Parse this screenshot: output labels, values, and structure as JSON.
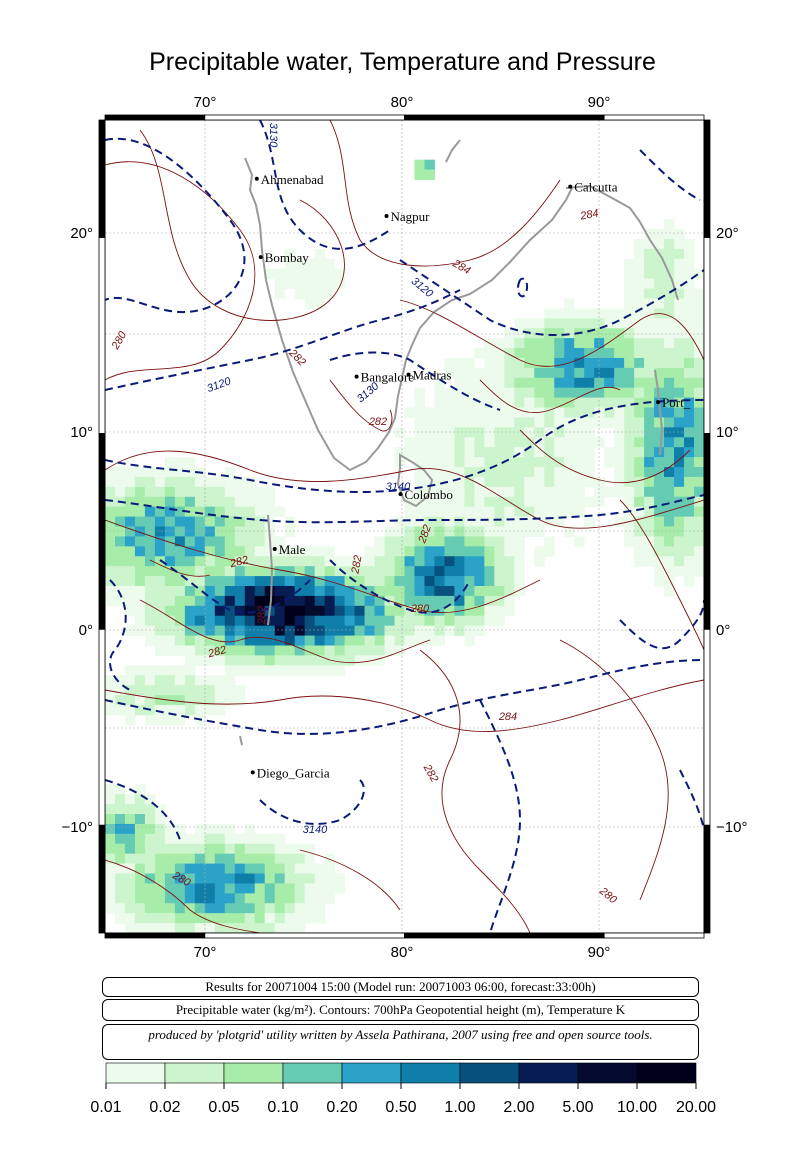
{
  "title": "Precipitable water, Temperature and Pressure",
  "axes": {
    "lon_ticks": [
      "70°",
      "80°",
      "90°"
    ],
    "lat_ticks": [
      "20°",
      "10°",
      "0°",
      "−10°"
    ]
  },
  "cities": [
    {
      "name": "Ahmenabad",
      "lon": 72.6,
      "lat": 23.0
    },
    {
      "name": "Nagpur",
      "lon": 79.1,
      "lat": 21.1
    },
    {
      "name": "Calcutta",
      "lon": 88.3,
      "lat": 22.6
    },
    {
      "name": "Bombay",
      "lon": 72.8,
      "lat": 19.0
    },
    {
      "name": "Bangalore",
      "lon": 77.6,
      "lat": 12.9
    },
    {
      "name": "Madras",
      "lon": 80.2,
      "lat": 13.0
    },
    {
      "name": "Port_",
      "lon": 92.7,
      "lat": 11.6
    },
    {
      "name": "Colombo",
      "lon": 79.8,
      "lat": 6.9
    },
    {
      "name": "Male",
      "lon": 73.5,
      "lat": 4.1
    },
    {
      "name": "Diego_Garcia",
      "lon": 72.4,
      "lat": -7.3
    }
  ],
  "contour_labels": {
    "geopotential": [
      "3130",
      "3120",
      "3120",
      "3130",
      "3140",
      "3140"
    ],
    "temperature": [
      "284",
      "284",
      "280",
      "282",
      "282",
      "282",
      "282",
      "282",
      "282",
      "280",
      "282",
      "284",
      "282",
      "280",
      "280"
    ]
  },
  "info": {
    "results": "Results for 20071004 15:00 (Model run: 20071003 06:00, forecast:33:00h)",
    "legend_line": "Precipitable water (kg/m²).  Contours: 700hPa Geopotential height (m), Temperature K",
    "credit": "produced by 'plotgrid' utility written by Assela Pathirana, 2007 using free and open source tools."
  },
  "colorbar": {
    "labels": [
      "0.01",
      "0.02",
      "0.05",
      "0.10",
      "0.20",
      "0.50",
      "1.00",
      "2.00",
      "5.00",
      "10.00",
      "20.00"
    ],
    "colors": [
      "#ecfbec",
      "#cdf5cd",
      "#a7eda9",
      "#66cbb3",
      "#2ba3c8",
      "#0f7ea9",
      "#08507d",
      "#061c52",
      "#030a2e",
      "#000018"
    ]
  }
}
